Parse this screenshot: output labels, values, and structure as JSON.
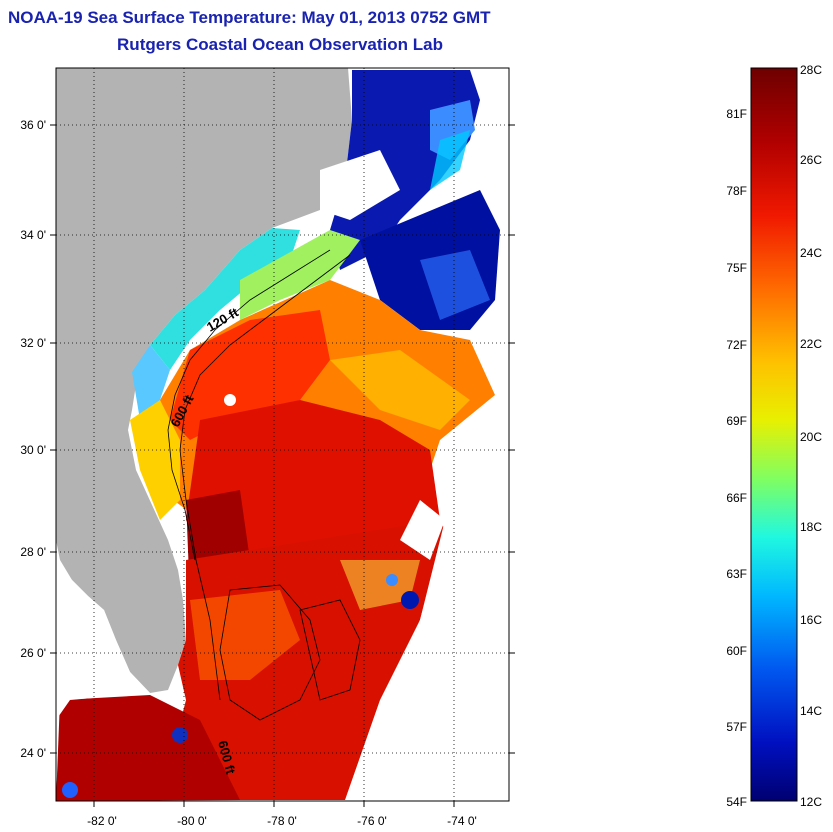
{
  "header": {
    "title": "NOAA-19 Sea Surface Temperature:  May 01, 2013 0752 GMT",
    "subtitle": "Rutgers Coastal Ocean Observation Lab"
  },
  "map": {
    "lat_labels": [
      "36 0'",
      "34 0'",
      "32 0'",
      "30 0'",
      "28 0'",
      "26 0'",
      "24 0'"
    ],
    "lon_labels": [
      "-82 0'",
      "-80 0'",
      "-78 0'",
      "-76 0'",
      "-74 0'"
    ],
    "isobath_labels": [
      "120 ft",
      "600 ft",
      "600 ft"
    ]
  },
  "colorbar": {
    "celsius_labels": [
      "28C",
      "26C",
      "24C",
      "22C",
      "20C",
      "18C",
      "16C",
      "14C",
      "12C"
    ],
    "fahrenheit_labels": [
      "81F",
      "78F",
      "75F",
      "72F",
      "69F",
      "66F",
      "63F",
      "60F",
      "57F",
      "54F"
    ],
    "colors": [
      "#7a0000",
      "#c00000",
      "#ff2000",
      "#ff7a00",
      "#ffcc00",
      "#d8ff00",
      "#7dff5a",
      "#20ffd0",
      "#00bfff",
      "#0060ff",
      "#0010c0",
      "#000080"
    ]
  },
  "palette": {
    "land": "#b3b3b3",
    "title_color": "#1a23b0"
  }
}
